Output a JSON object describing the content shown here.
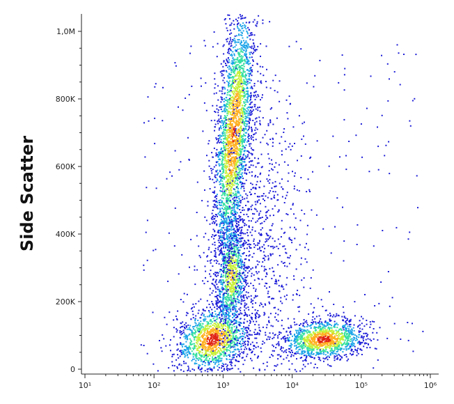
{
  "chart_data": {
    "type": "scatter",
    "title": "",
    "xlabel": "",
    "ylabel": "Side Scatter",
    "x_scale": "log",
    "xlim": [
      10,
      1000000
    ],
    "ylim": [
      0,
      1050000
    ],
    "grid": false,
    "x_ticks": [
      {
        "value": 10,
        "label": "10¹"
      },
      {
        "value": 100,
        "label": "10²"
      },
      {
        "value": 1000,
        "label": "10³"
      },
      {
        "value": 10000,
        "label": "10⁴"
      },
      {
        "value": 100000,
        "label": "10⁵"
      },
      {
        "value": 1000000,
        "label": "10⁶"
      }
    ],
    "y_ticks": [
      {
        "value": 0,
        "label": "0"
      },
      {
        "value": 200000,
        "label": "200K"
      },
      {
        "value": 400000,
        "label": "400K"
      },
      {
        "value": 600000,
        "label": "600K"
      },
      {
        "value": 800000,
        "label": "800K"
      },
      {
        "value": 1000000,
        "label": "1,0M"
      }
    ],
    "color_scale": [
      "#1c1cd8",
      "#1aa3e8",
      "#36e0a0",
      "#c8f03a",
      "#ffb020",
      "#e02414"
    ],
    "populations": [
      {
        "x_center": 700,
        "y_center": 90000,
        "points": 1400
      },
      {
        "x_center": 1300,
        "y_center": 280000,
        "points": 900
      },
      {
        "x_center": 1400,
        "y_center": 700000,
        "points": 2600
      },
      {
        "x_center": 28000,
        "y_center": 90000,
        "points": 1300
      },
      {
        "x_center": 3000,
        "y_center": 400000,
        "points": 900
      }
    ]
  }
}
